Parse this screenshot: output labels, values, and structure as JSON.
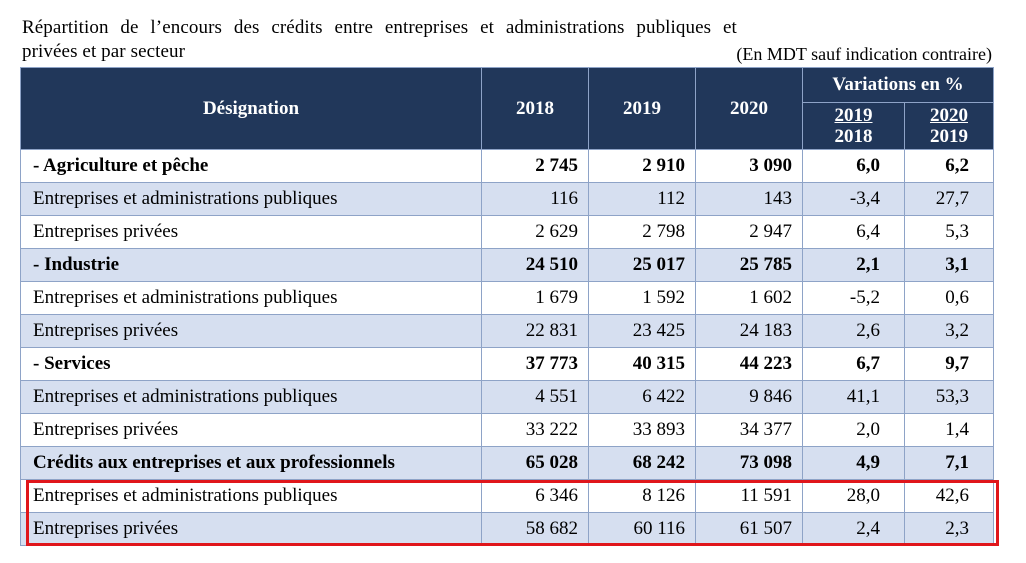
{
  "title": {
    "line1": "Répartition de l’encours des crédits entre entreprises et administrations publiques et",
    "line2": "privées et par secteur",
    "unit_note": "(En MDT sauf indication contraire)"
  },
  "table": {
    "header": {
      "designation": "Désignation",
      "years": [
        "2018",
        "2019",
        "2020"
      ],
      "variations_label": "Variations en %",
      "var_2019": {
        "top": "2019",
        "bottom": "2018"
      },
      "var_2020": {
        "top": "2020",
        "bottom": "2019"
      }
    },
    "rows": [
      {
        "label": "- Agriculture et pêche",
        "v2018": "2 745",
        "v2019": "2 910",
        "v2020": "3 090",
        "var1": "6,0",
        "var2": "6,2"
      },
      {
        "label": "Entreprises et administrations publiques",
        "v2018": "116",
        "v2019": "112",
        "v2020": "143",
        "var1": "-3,4",
        "var2": "27,7"
      },
      {
        "label": "Entreprises privées",
        "v2018": "2 629",
        "v2019": "2 798",
        "v2020": "2 947",
        "var1": "6,4",
        "var2": "5,3"
      },
      {
        "label": "- Industrie",
        "v2018": "24 510",
        "v2019": "25 017",
        "v2020": "25 785",
        "var1": "2,1",
        "var2": "3,1"
      },
      {
        "label": "Entreprises et administrations publiques",
        "v2018": "1 679",
        "v2019": "1 592",
        "v2020": "1 602",
        "var1": "-5,2",
        "var2": "0,6"
      },
      {
        "label": "Entreprises privées",
        "v2018": "22 831",
        "v2019": "23 425",
        "v2020": "24 183",
        "var1": "2,6",
        "var2": "3,2"
      },
      {
        "label": "- Services",
        "v2018": "37 773",
        "v2019": "40 315",
        "v2020": "44 223",
        "var1": "6,7",
        "var2": "9,7"
      },
      {
        "label": "Entreprises et administrations publiques",
        "v2018": "4 551",
        "v2019": "6 422",
        "v2020": "9 846",
        "var1": "41,1",
        "var2": "53,3"
      },
      {
        "label": "Entreprises privées",
        "v2018": "33 222",
        "v2019": "33 893",
        "v2020": "34 377",
        "var1": "2,0",
        "var2": "1,4"
      },
      {
        "label": "Crédits aux entreprises et aux professionnels",
        "v2018": "65 028",
        "v2019": "68 242",
        "v2020": "73 098",
        "var1": "4,9",
        "var2": "7,1"
      },
      {
        "label": "Entreprises et administrations publiques",
        "v2018": "6 346",
        "v2019": "8 126",
        "v2020": "11 591",
        "var1": "28,0",
        "var2": "42,6"
      },
      {
        "label": "Entreprises privées",
        "v2018": "58 682",
        "v2019": "60 116",
        "v2020": "61 507",
        "var1": "2,4",
        "var2": "2,3"
      }
    ]
  },
  "colors": {
    "header_bg": "#21375a",
    "row_shade": "#d6dff0",
    "highlight_border": "#e0161b"
  }
}
